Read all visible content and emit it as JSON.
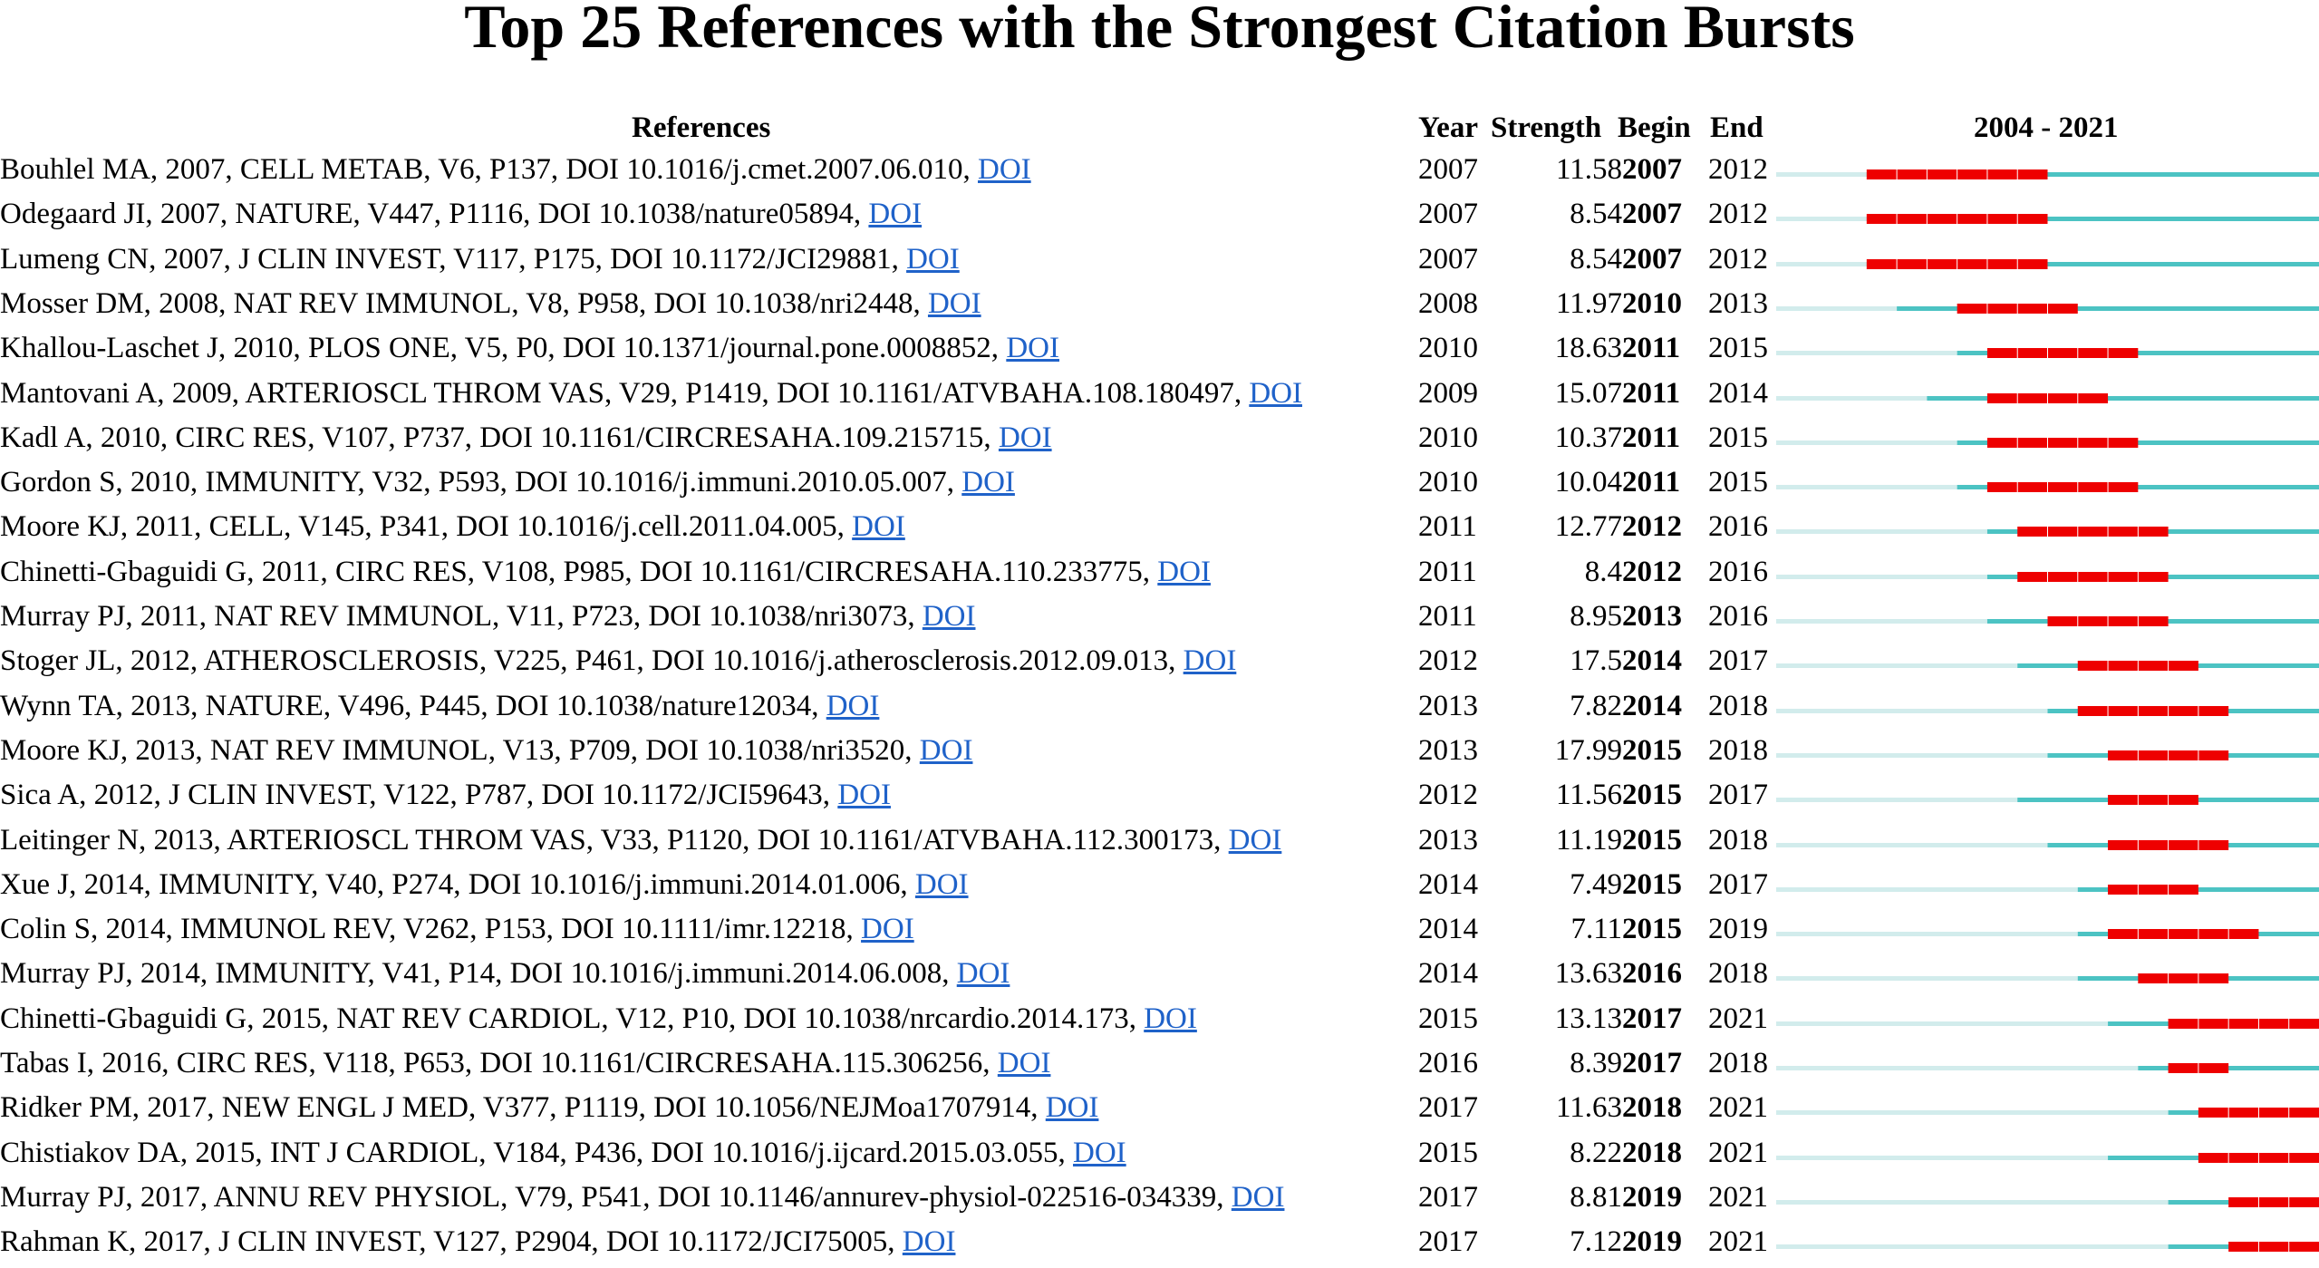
{
  "title": "Top 25 References with the Strongest Citation Bursts",
  "headers": {
    "references": "References",
    "year": "Year",
    "strength": "Strength",
    "begin": "Begin",
    "end": "End",
    "range": "2004 - 2021"
  },
  "colors": {
    "pre_publication": "#d2ecec",
    "active": "#4cc3c3",
    "burst": "#ee0000",
    "doi_link": "#1f62c9"
  },
  "chart_data": {
    "type": "table",
    "title": "Top 25 References with the Strongest Citation Bursts",
    "timeline": {
      "start": 2004,
      "end": 2021
    },
    "columns": [
      "References",
      "Year",
      "Strength",
      "Begin",
      "End",
      "2004 - 2021"
    ],
    "rows": [
      {
        "ref": "Bouhlel MA, 2007, CELL METAB, V6, P137, DOI 10.1016/j.cmet.2007.06.010, ",
        "doi": "DOI",
        "year": 2007,
        "strength": "11.58",
        "begin": 2007,
        "end": 2012
      },
      {
        "ref": "Odegaard JI, 2007, NATURE, V447, P1116, DOI 10.1038/nature05894, ",
        "doi": "DOI",
        "year": 2007,
        "strength": "8.54",
        "begin": 2007,
        "end": 2012
      },
      {
        "ref": "Lumeng CN, 2007, J CLIN INVEST, V117, P175, DOI 10.1172/JCI29881, ",
        "doi": "DOI",
        "year": 2007,
        "strength": "8.54",
        "begin": 2007,
        "end": 2012
      },
      {
        "ref": "Mosser DM, 2008, NAT REV IMMUNOL, V8, P958, DOI 10.1038/nri2448, ",
        "doi": "DOI",
        "year": 2008,
        "strength": "11.97",
        "begin": 2010,
        "end": 2013
      },
      {
        "ref": "Khallou-Laschet J, 2010, PLOS ONE, V5, P0, DOI 10.1371/journal.pone.0008852, ",
        "doi": "DOI",
        "year": 2010,
        "strength": "18.63",
        "begin": 2011,
        "end": 2015
      },
      {
        "ref": "Mantovani A, 2009, ARTERIOSCL THROM VAS, V29, P1419, DOI 10.1161/ATVBAHA.108.180497, ",
        "doi": "DOI",
        "year": 2009,
        "strength": "15.07",
        "begin": 2011,
        "end": 2014
      },
      {
        "ref": "Kadl A, 2010, CIRC RES, V107, P737, DOI 10.1161/CIRCRESAHA.109.215715, ",
        "doi": "DOI",
        "year": 2010,
        "strength": "10.37",
        "begin": 2011,
        "end": 2015
      },
      {
        "ref": "Gordon S, 2010, IMMUNITY, V32, P593, DOI 10.1016/j.immuni.2010.05.007, ",
        "doi": "DOI",
        "year": 2010,
        "strength": "10.04",
        "begin": 2011,
        "end": 2015
      },
      {
        "ref": "Moore KJ, 2011, CELL, V145, P341, DOI 10.1016/j.cell.2011.04.005, ",
        "doi": "DOI",
        "year": 2011,
        "strength": "12.77",
        "begin": 2012,
        "end": 2016
      },
      {
        "ref": "Chinetti-Gbaguidi G, 2011, CIRC RES, V108, P985, DOI 10.1161/CIRCRESAHA.110.233775, ",
        "doi": "DOI",
        "year": 2011,
        "strength": "8.4",
        "begin": 2012,
        "end": 2016
      },
      {
        "ref": "Murray PJ, 2011, NAT REV IMMUNOL, V11, P723, DOI 10.1038/nri3073, ",
        "doi": "DOI",
        "year": 2011,
        "strength": "8.95",
        "begin": 2013,
        "end": 2016
      },
      {
        "ref": "Stoger JL, 2012, ATHEROSCLEROSIS, V225, P461, DOI 10.1016/j.atherosclerosis.2012.09.013, ",
        "doi": "DOI",
        "year": 2012,
        "strength": "17.5",
        "begin": 2014,
        "end": 2017
      },
      {
        "ref": "Wynn TA, 2013, NATURE, V496, P445, DOI 10.1038/nature12034, ",
        "doi": "DOI",
        "year": 2013,
        "strength": "7.82",
        "begin": 2014,
        "end": 2018
      },
      {
        "ref": "Moore KJ, 2013, NAT REV IMMUNOL, V13, P709, DOI 10.1038/nri3520, ",
        "doi": "DOI",
        "year": 2013,
        "strength": "17.99",
        "begin": 2015,
        "end": 2018
      },
      {
        "ref": "Sica A, 2012, J CLIN INVEST, V122, P787, DOI 10.1172/JCI59643, ",
        "doi": "DOI",
        "year": 2012,
        "strength": "11.56",
        "begin": 2015,
        "end": 2017
      },
      {
        "ref": "Leitinger N, 2013, ARTERIOSCL THROM VAS, V33, P1120, DOI 10.1161/ATVBAHA.112.300173, ",
        "doi": "DOI",
        "year": 2013,
        "strength": "11.19",
        "begin": 2015,
        "end": 2018
      },
      {
        "ref": "Xue J, 2014, IMMUNITY, V40, P274, DOI 10.1016/j.immuni.2014.01.006, ",
        "doi": "DOI",
        "year": 2014,
        "strength": "7.49",
        "begin": 2015,
        "end": 2017
      },
      {
        "ref": "Colin S, 2014, IMMUNOL REV, V262, P153, DOI 10.1111/imr.12218, ",
        "doi": "DOI",
        "year": 2014,
        "strength": "7.11",
        "begin": 2015,
        "end": 2019
      },
      {
        "ref": "Murray PJ, 2014, IMMUNITY, V41, P14, DOI 10.1016/j.immuni.2014.06.008, ",
        "doi": "DOI",
        "year": 2014,
        "strength": "13.63",
        "begin": 2016,
        "end": 2018
      },
      {
        "ref": "Chinetti-Gbaguidi G, 2015, NAT REV CARDIOL, V12, P10, DOI 10.1038/nrcardio.2014.173, ",
        "doi": "DOI",
        "year": 2015,
        "strength": "13.13",
        "begin": 2017,
        "end": 2021
      },
      {
        "ref": "Tabas I, 2016, CIRC RES, V118, P653, DOI 10.1161/CIRCRESAHA.115.306256, ",
        "doi": "DOI",
        "year": 2016,
        "strength": "8.39",
        "begin": 2017,
        "end": 2018
      },
      {
        "ref": "Ridker PM, 2017, NEW ENGL J MED, V377, P1119, DOI 10.1056/NEJMoa1707914, ",
        "doi": "DOI",
        "year": 2017,
        "strength": "11.63",
        "begin": 2018,
        "end": 2021
      },
      {
        "ref": "Chistiakov DA, 2015, INT J CARDIOL, V184, P436, DOI 10.1016/j.ijcard.2015.03.055, ",
        "doi": "DOI",
        "year": 2015,
        "strength": "8.22",
        "begin": 2018,
        "end": 2021
      },
      {
        "ref": "Murray PJ, 2017, ANNU REV PHYSIOL, V79, P541, DOI 10.1146/annurev-physiol-022516-034339, ",
        "doi": "DOI",
        "year": 2017,
        "strength": "8.81",
        "begin": 2019,
        "end": 2021
      },
      {
        "ref": "Rahman K, 2017, J CLIN INVEST, V127, P2904, DOI 10.1172/JCI75005, ",
        "doi": "DOI",
        "year": 2017,
        "strength": "7.12",
        "begin": 2019,
        "end": 2021
      }
    ]
  }
}
